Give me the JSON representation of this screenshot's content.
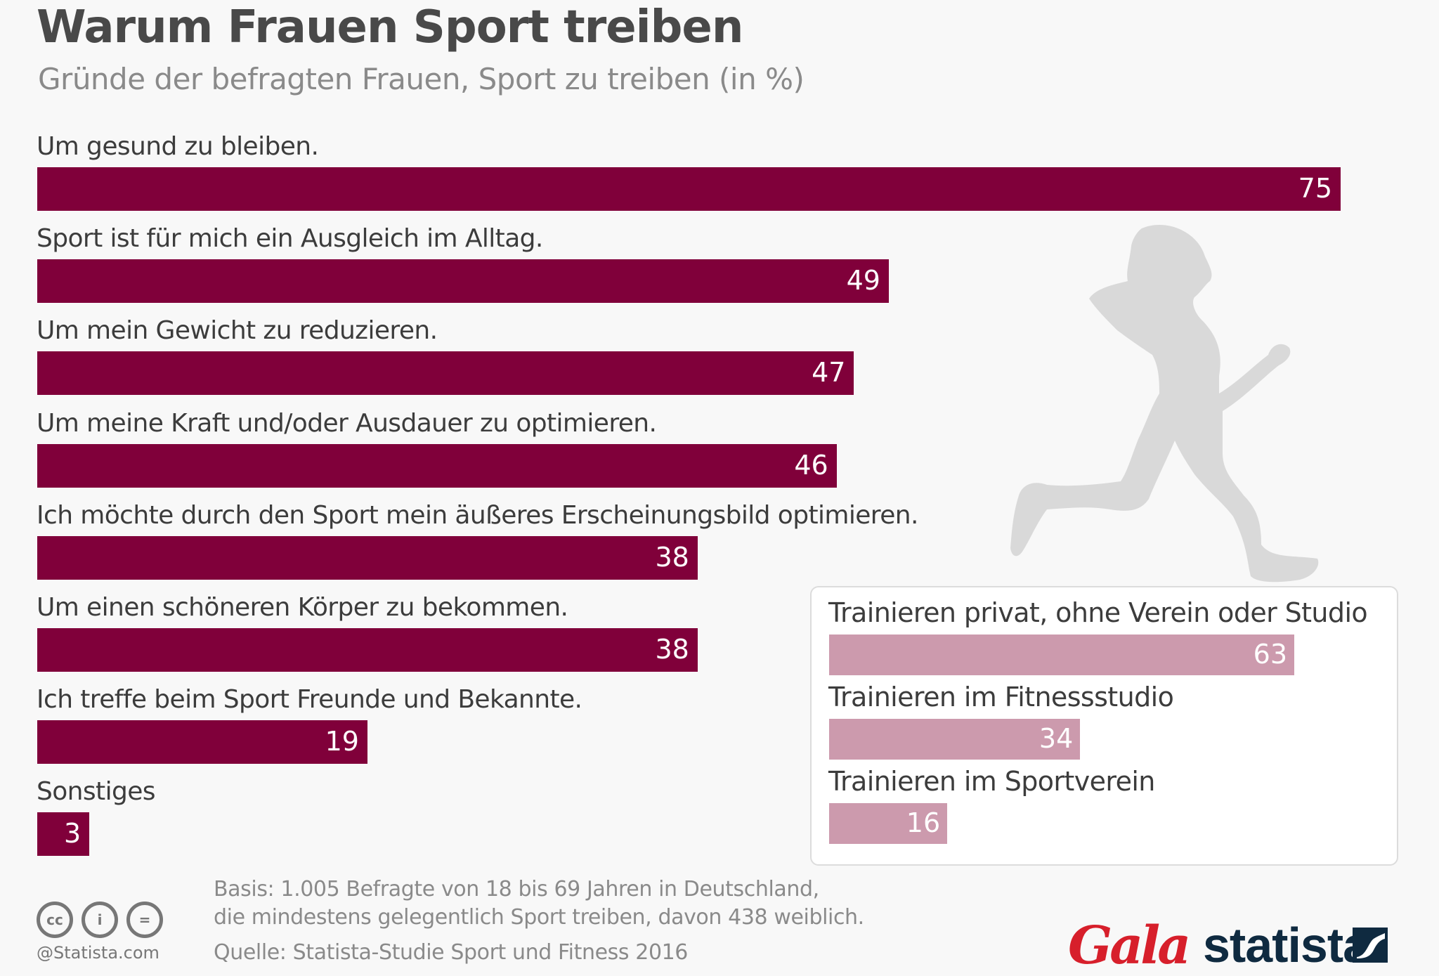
{
  "header": {
    "title": "Warum Frauen Sport treiben",
    "subtitle": "Gründe der befragten Frauen, Sport zu treiben (in %)"
  },
  "chart_data": [
    {
      "type": "bar",
      "orientation": "horizontal",
      "title": "Warum Frauen Sport treiben",
      "subtitle": "Gründe der befragten Frauen, Sport zu treiben (in %)",
      "unit": "%",
      "color": "#80003a",
      "categories": [
        "Um gesund zu bleiben.",
        "Sport ist für mich ein Ausgleich im Alltag.",
        "Um mein Gewicht zu reduzieren.",
        "Um meine Kraft und/oder Ausdauer zu optimieren.",
        "Ich möchte durch den Sport mein äußeres Erscheinungsbild optimieren.",
        "Um einen schöneren Körper zu bekommen.",
        "Ich treffe beim Sport Freunde und Bekannte.",
        "Sonstiges"
      ],
      "values": [
        75,
        49,
        47,
        46,
        38,
        38,
        19,
        3
      ],
      "data_labels": [
        "75",
        "49",
        "47",
        "46",
        "38",
        "38",
        "19",
        "3"
      ],
      "xlim": [
        0,
        75
      ],
      "grid": false,
      "legend": "none"
    },
    {
      "type": "bar",
      "orientation": "horizontal",
      "title": "",
      "unit": "%",
      "color": "#cc9aad",
      "categories": [
        "Trainieren privat, ohne Verein oder Studio",
        "Trainieren im Fitnessstudio",
        "Trainieren im Sportverein"
      ],
      "values": [
        63,
        34,
        16
      ],
      "data_labels": [
        "63",
        "34",
        "16"
      ],
      "xlim": [
        0,
        63
      ],
      "grid": false,
      "legend": "none"
    }
  ],
  "illustration": {
    "icon": "running-woman-silhouette-icon"
  },
  "footer": {
    "basis_line1": "Basis: 1.005 Befragte von 18 bis 69 Jahren in Deutschland,",
    "basis_line2": "die mindestens gelegentlich Sport treiben, davon 438 weiblich.",
    "source": "Quelle: Statista-Studie Sport und Fitness 2016",
    "copyright": "@Statista.com",
    "license_icons": [
      {
        "name": "cc-icon",
        "glyph": "cc"
      },
      {
        "name": "by-attribution-icon",
        "glyph": "i"
      },
      {
        "name": "no-derivatives-icon",
        "glyph": "="
      }
    ],
    "partner_logo": "Gala",
    "brand_logo": "statista"
  },
  "colors": {
    "background": "#f8f8f8",
    "primary_bar": "#80003a",
    "secondary_bar": "#cc9aad",
    "gala_red": "#d71f2b",
    "statista_navy": "#0f2a40"
  }
}
